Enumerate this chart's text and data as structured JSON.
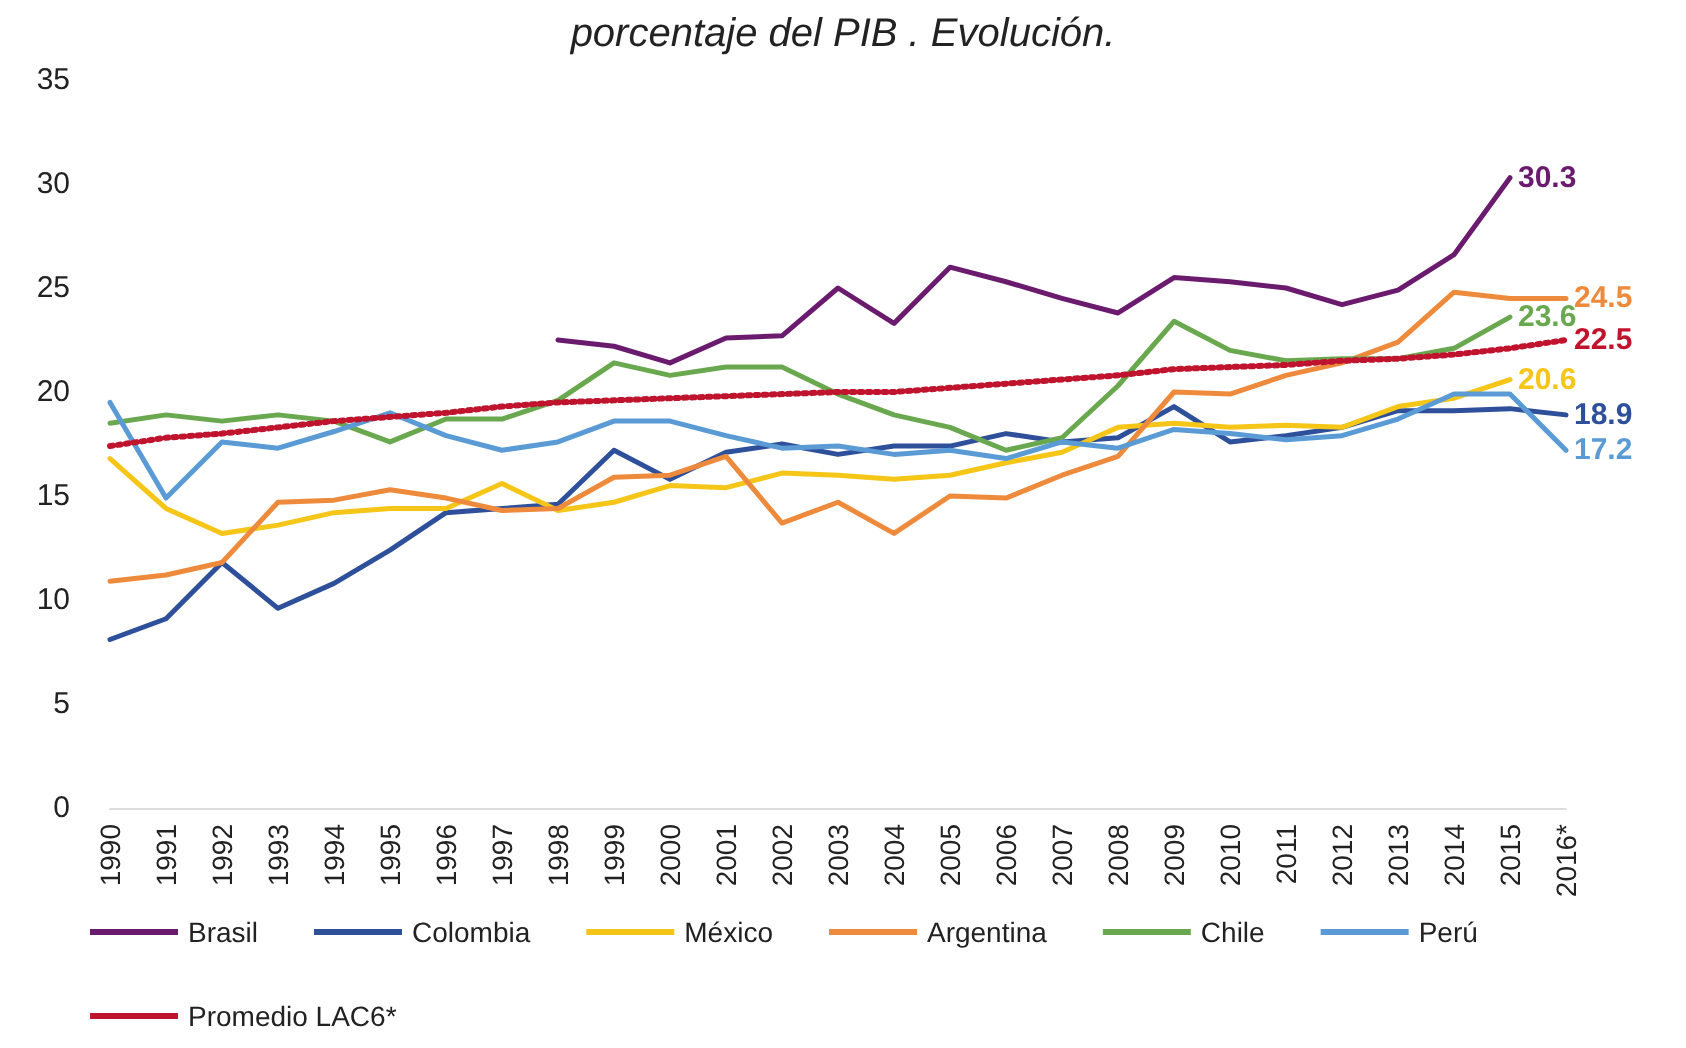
{
  "chart_data": {
    "type": "line",
    "title": "porcentaje del PIB . Evolución.",
    "categories": [
      "1990",
      "1991",
      "1992",
      "1993",
      "1994",
      "1995",
      "1996",
      "1997",
      "1998",
      "1999",
      "2000",
      "2001",
      "2002",
      "2003",
      "2004",
      "2005",
      "2006",
      "2007",
      "2008",
      "2009",
      "2010",
      "2011",
      "2012",
      "2013",
      "2014",
      "2015",
      "2016*"
    ],
    "series": [
      {
        "name": "Brasil",
        "color": "#6a1b6e",
        "values": [
          null,
          null,
          null,
          null,
          null,
          null,
          null,
          null,
          22.5,
          22.2,
          21.4,
          22.6,
          22.7,
          25.0,
          23.3,
          26.0,
          25.3,
          24.5,
          23.8,
          25.5,
          25.3,
          25.0,
          24.2,
          24.9,
          26.6,
          30.3,
          null
        ],
        "value_labels": [
          null,
          null,
          null,
          null,
          null,
          null,
          null,
          null,
          null,
          null,
          null,
          null,
          null,
          null,
          null,
          null,
          null,
          null,
          null,
          null,
          null,
          null,
          null,
          null,
          null,
          "30.3",
          null
        ]
      },
      {
        "name": "Colombia",
        "color": "#2e4f9a",
        "values": [
          8.1,
          9.1,
          11.8,
          9.6,
          10.8,
          12.4,
          14.2,
          14.4,
          14.6,
          17.2,
          15.8,
          17.1,
          17.5,
          17.0,
          17.4,
          17.4,
          18.0,
          17.6,
          17.8,
          19.3,
          17.6,
          17.9,
          18.3,
          19.1,
          19.1,
          19.2,
          18.9
        ],
        "value_labels": [
          null,
          null,
          null,
          null,
          null,
          null,
          null,
          null,
          null,
          null,
          null,
          null,
          null,
          null,
          null,
          null,
          null,
          null,
          null,
          null,
          null,
          null,
          null,
          null,
          null,
          null,
          "18.9"
        ]
      },
      {
        "name": "México",
        "color": "#f5c518",
        "values": [
          16.8,
          14.4,
          13.2,
          13.6,
          14.2,
          14.4,
          14.4,
          15.6,
          14.3,
          14.7,
          15.5,
          15.4,
          16.1,
          16.0,
          15.8,
          16.0,
          16.6,
          17.1,
          18.3,
          18.5,
          18.3,
          18.4,
          18.3,
          19.3,
          19.7,
          20.6,
          null
        ],
        "value_labels": [
          null,
          null,
          null,
          null,
          null,
          null,
          null,
          null,
          null,
          null,
          null,
          null,
          null,
          null,
          null,
          null,
          null,
          null,
          null,
          null,
          null,
          null,
          null,
          null,
          null,
          "20.6",
          null
        ]
      },
      {
        "name": "Argentina",
        "color": "#ee8a3c",
        "values": [
          10.9,
          11.2,
          11.8,
          14.7,
          14.8,
          15.3,
          14.9,
          14.3,
          14.4,
          15.9,
          16.0,
          16.9,
          13.7,
          14.7,
          13.2,
          15.0,
          14.9,
          16.0,
          16.9,
          20.0,
          19.9,
          20.8,
          21.4,
          22.4,
          24.8,
          24.5,
          24.5
        ],
        "value_labels": [
          null,
          null,
          null,
          null,
          null,
          null,
          null,
          null,
          null,
          null,
          null,
          null,
          null,
          null,
          null,
          null,
          null,
          null,
          null,
          null,
          null,
          null,
          null,
          null,
          null,
          null,
          "24.5"
        ]
      },
      {
        "name": "Chile",
        "color": "#6aa84f",
        "values": [
          18.5,
          18.9,
          18.6,
          18.9,
          18.6,
          17.6,
          18.7,
          18.7,
          19.6,
          21.4,
          20.8,
          21.2,
          21.2,
          19.9,
          18.9,
          18.3,
          17.2,
          17.8,
          20.3,
          23.4,
          22.0,
          21.5,
          21.6,
          21.6,
          22.1,
          23.6,
          null
        ],
        "value_labels": [
          null,
          null,
          null,
          null,
          null,
          null,
          null,
          null,
          null,
          null,
          null,
          null,
          null,
          null,
          null,
          null,
          null,
          null,
          null,
          null,
          null,
          null,
          null,
          null,
          null,
          "23.6",
          null
        ]
      },
      {
        "name": "Perú",
        "color": "#5b9bd5",
        "values": [
          19.5,
          14.9,
          17.6,
          17.3,
          18.1,
          19.0,
          17.9,
          17.2,
          17.6,
          18.6,
          18.6,
          17.9,
          17.3,
          17.4,
          17.0,
          17.2,
          16.8,
          17.6,
          17.3,
          18.2,
          18.0,
          17.7,
          17.9,
          18.7,
          19.9,
          19.9,
          17.2
        ],
        "value_labels": [
          null,
          null,
          null,
          null,
          null,
          null,
          null,
          null,
          null,
          null,
          null,
          null,
          null,
          null,
          null,
          null,
          null,
          null,
          null,
          null,
          null,
          null,
          null,
          null,
          null,
          null,
          "17.2"
        ]
      },
      {
        "name": "Promedio LAC6*",
        "color": "#c0142e",
        "line_style": "dotted",
        "values": [
          17.4,
          17.8,
          18.0,
          18.3,
          18.6,
          18.8,
          19.0,
          19.3,
          19.5,
          19.6,
          19.7,
          19.8,
          19.9,
          20.0,
          20.0,
          20.2,
          20.4,
          20.6,
          20.8,
          21.1,
          21.2,
          21.3,
          21.5,
          21.6,
          21.8,
          22.1,
          22.5
        ],
        "value_labels": [
          null,
          null,
          null,
          null,
          null,
          null,
          null,
          null,
          null,
          null,
          null,
          null,
          null,
          null,
          null,
          null,
          null,
          null,
          null,
          null,
          null,
          null,
          null,
          null,
          null,
          null,
          "22.5"
        ]
      }
    ],
    "ylim": [
      0,
      35
    ],
    "yticks": [
      0,
      5,
      10,
      15,
      20,
      25,
      30,
      35
    ],
    "grid": false,
    "legend": "bottom",
    "marker": "none",
    "line_style": "solid"
  }
}
